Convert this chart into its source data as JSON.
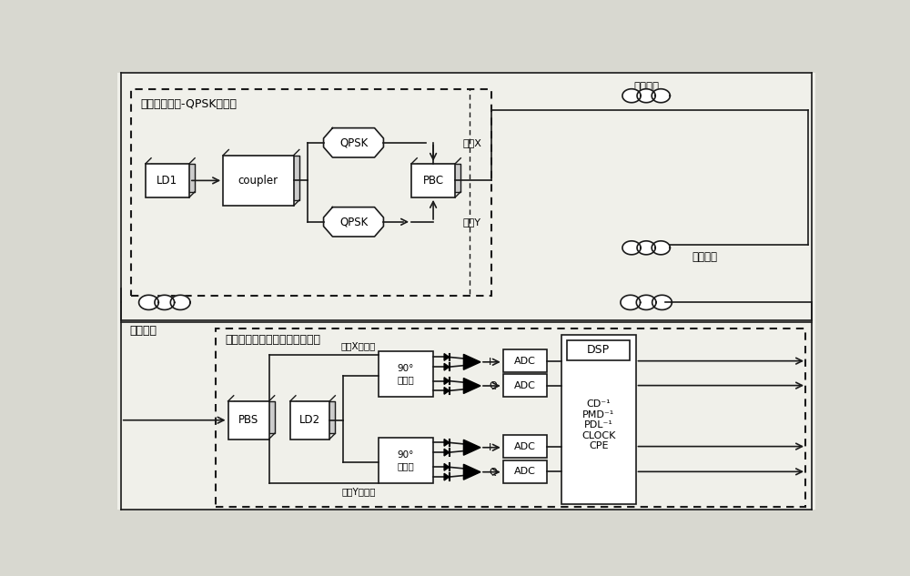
{
  "bg_color": "#e8e8e0",
  "line_color": "#1a1a1a",
  "box_fill": "#ffffff",
  "title_transmitter": "单载波双偏振-QPSK发射机",
  "title_receiver": "单载波双偏振相干电处理接收机",
  "label_fiber1": "传输光纤",
  "label_fiber2": "传输光纤",
  "label_fiber3": "传输光纤",
  "label_polX": "偏振X",
  "label_polY": "偏振Y",
  "label_polX_sig": "偏振X光信号",
  "label_polY_sig": "偏振Y光信号",
  "LD1": "LD1",
  "coupler": "coupler",
  "QPSK": "QPSK",
  "PBC": "PBC",
  "PBS": "PBS",
  "LD2": "LD2",
  "mixer": "90°\n混频器",
  "ADC": "ADC",
  "DSP": "DSP",
  "DSP_content": "CD⁻¹\nPMD⁻¹\nPDL⁻¹\nCLOCK\nCPE",
  "I": "I",
  "Q": "Q"
}
